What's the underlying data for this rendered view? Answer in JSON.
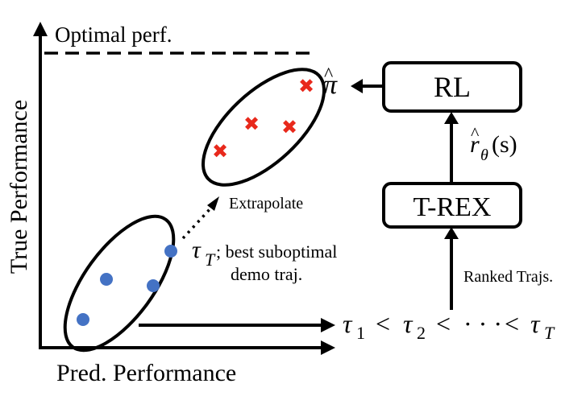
{
  "axes": {
    "y_label": "True Performance",
    "x_label": "Pred. Performance",
    "optimal_label": "Optimal perf."
  },
  "annotations": {
    "extrapolate": "Extrapolate",
    "best_demo_symbol": "τ",
    "best_demo_subscript": "T",
    "best_demo_line1": "; best suboptimal",
    "best_demo_line2": "demo traj."
  },
  "ranking": {
    "tau_symbol": "τ",
    "subscripts": [
      "1",
      "2",
      "T"
    ],
    "less_than": "<",
    "ellipsis": "· · ·"
  },
  "pipeline": {
    "trex_label": "T-REX",
    "rl_label": "RL",
    "ranked_trajs_label": "Ranked Trajs.",
    "reward_symbol": "r",
    "reward_hat": "^",
    "reward_subscript": "θ",
    "reward_arg": "(s)",
    "policy_symbol": "π",
    "policy_hat": "^"
  },
  "colors": {
    "demo_points": "#4472c4",
    "policy_points": "#e8291c",
    "stroke": "#000000"
  }
}
